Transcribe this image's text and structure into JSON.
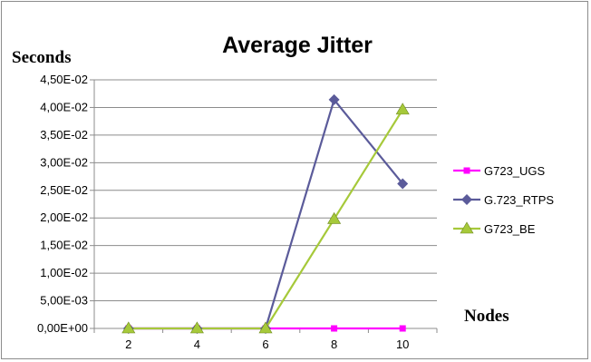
{
  "chart_data": {
    "type": "line",
    "title": "Average Jitter",
    "ylabel": "Seconds",
    "xlabel": "Nodes",
    "categories": [
      "2",
      "4",
      "6",
      "8",
      "10"
    ],
    "ylim": [
      0,
      0.045
    ],
    "y_ticks": [
      "0,00E+00",
      "5,00E-03",
      "1,00E-02",
      "1,50E-02",
      "2,00E-02",
      "2,50E-02",
      "3,00E-02",
      "3,50E-02",
      "4,00E-02",
      "4,50E-02"
    ],
    "grid": true,
    "legend_position": "right",
    "series": [
      {
        "name": "G723_UGS",
        "color": "#ff00ff",
        "marker": "square",
        "values": [
          0,
          0,
          0,
          0,
          0
        ]
      },
      {
        "name": "G.723_RTPS",
        "color": "#5b5b9a",
        "marker": "diamond",
        "values": [
          0,
          0,
          0,
          0.0414,
          0.0262
        ]
      },
      {
        "name": "G723_BE",
        "color": "#a6c93a",
        "marker": "triangle",
        "values": [
          0,
          0,
          0,
          0.0198,
          0.0396
        ]
      }
    ]
  }
}
